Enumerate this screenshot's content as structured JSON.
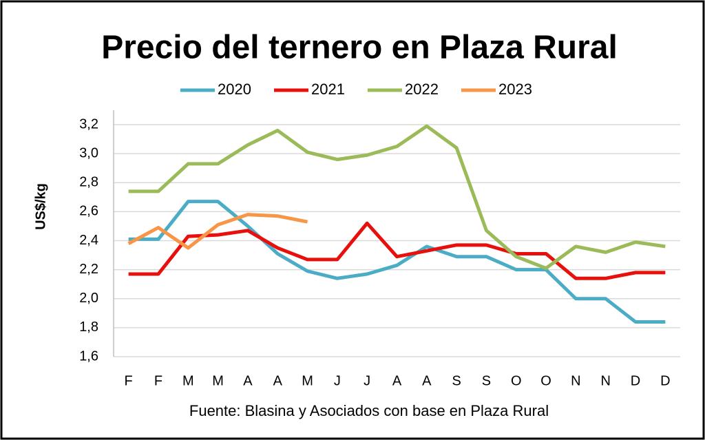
{
  "chart_data": {
    "type": "line",
    "title": "Precio del ternero en Plaza Rural",
    "y_label": "US$/kg",
    "source": "Fuente: Blasina y Asociados con base en Plaza Rural",
    "categories": [
      "F",
      "F",
      "M",
      "M",
      "A",
      "A",
      "M",
      "J",
      "J",
      "A",
      "A",
      "S",
      "S",
      "O",
      "O",
      "N",
      "N",
      "D",
      "D"
    ],
    "series": [
      {
        "name": "2020",
        "color": "#4bacc6",
        "values": [
          2.41,
          2.41,
          2.67,
          2.67,
          2.5,
          2.31,
          2.19,
          2.14,
          2.17,
          2.23,
          2.36,
          2.29,
          2.29,
          2.2,
          2.2,
          2.0,
          2.0,
          1.84,
          1.84
        ]
      },
      {
        "name": "2021",
        "color": "#e8100c",
        "values": [
          2.17,
          2.17,
          2.43,
          2.44,
          2.47,
          2.35,
          2.27,
          2.27,
          2.52,
          2.29,
          2.33,
          2.37,
          2.37,
          2.31,
          2.31,
          2.14,
          2.14,
          2.18,
          2.18
        ]
      },
      {
        "name": "2022",
        "color": "#9bbb59",
        "values": [
          2.74,
          2.74,
          2.93,
          2.93,
          3.06,
          3.16,
          3.01,
          2.96,
          2.99,
          3.05,
          3.19,
          3.04,
          2.47,
          2.29,
          2.21,
          2.36,
          2.32,
          2.39,
          2.36
        ]
      },
      {
        "name": "2023",
        "color": "#f79646",
        "values": [
          2.38,
          2.49,
          2.35,
          2.51,
          2.58,
          2.57,
          2.53,
          null,
          null,
          null,
          null,
          null,
          null,
          null,
          null,
          null,
          null,
          null,
          null
        ]
      }
    ],
    "ylim": [
      1.6,
      3.3
    ],
    "yticks": [
      {
        "value": 1.6,
        "label": "1,6"
      },
      {
        "value": 1.8,
        "label": "1,8"
      },
      {
        "value": 2.0,
        "label": "2,0"
      },
      {
        "value": 2.2,
        "label": "2,2"
      },
      {
        "value": 2.4,
        "label": "2,4"
      },
      {
        "value": 2.6,
        "label": "2,6"
      },
      {
        "value": 2.8,
        "label": "2,8"
      },
      {
        "value": 3.0,
        "label": "3,0"
      },
      {
        "value": 3.2,
        "label": "3,2"
      }
    ],
    "grid": true,
    "legend": "top"
  }
}
